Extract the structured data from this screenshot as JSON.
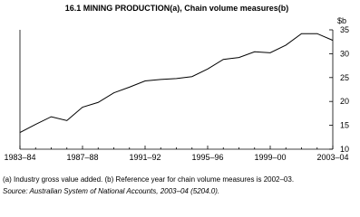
{
  "chart_data": {
    "type": "line",
    "title": "16.1  MINING PRODUCTION(a), Chain volume measures(b)",
    "y_axis_label": "$b",
    "categories": [
      "1983–84",
      null,
      null,
      null,
      "1987–88",
      null,
      null,
      null,
      "1991–92",
      null,
      null,
      null,
      "1995–96",
      null,
      null,
      null,
      "1999–00",
      null,
      null,
      null,
      "2003–04"
    ],
    "values": [
      13.5,
      15.2,
      16.8,
      16.0,
      18.8,
      19.8,
      21.8,
      23.0,
      24.3,
      24.6,
      24.8,
      25.2,
      26.8,
      28.8,
      29.2,
      30.4,
      30.2,
      31.8,
      34.2,
      34.2,
      32.8
    ],
    "color": "#000000",
    "ylim": [
      10,
      35
    ],
    "yticks": [
      10,
      15,
      20,
      25,
      30,
      35
    ],
    "footnotes": [
      "(a) Industry gross value added. (b) Reference year for chain volume measures is 2002–03.",
      "Source: Australian System of National Accounts, 2003–04 (5204.0)."
    ]
  }
}
